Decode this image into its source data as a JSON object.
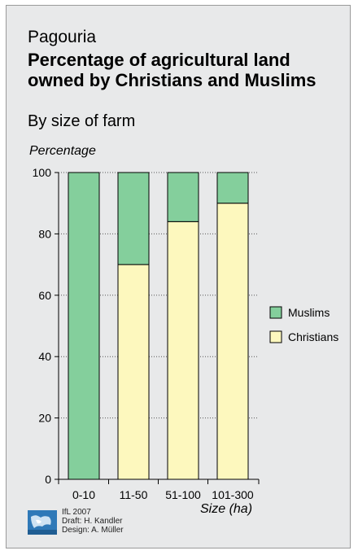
{
  "chart_data": {
    "type": "bar",
    "stacked": true,
    "supertitle": "Pagouria",
    "title": "Percentage of agricultural land owned by Christians and Muslims",
    "subtitle": "By size of farm",
    "ylabel": "Percentage",
    "xlabel": "Size (ha)",
    "categories": [
      "0-10",
      "11-50",
      "51-100",
      "101-300"
    ],
    "series": [
      {
        "name": "Christians",
        "values": [
          0,
          70,
          84,
          90
        ],
        "color": "#fdf8be"
      },
      {
        "name": "Muslims",
        "values": [
          100,
          30,
          16,
          10
        ],
        "color": "#84cf9c"
      }
    ],
    "legend_order": [
      "Muslims",
      "Christians"
    ],
    "ylim": [
      0,
      100
    ],
    "yticks": [
      0,
      20,
      40,
      60,
      80,
      100
    ],
    "grid": true,
    "legend": "right"
  },
  "credits": {
    "line1": "IfL 2007",
    "line2": "Draft: H. Kandler",
    "line3": "Design: A. Müller"
  },
  "colors": {
    "background": "#e8e9ea",
    "border": "#9a9a9a"
  }
}
